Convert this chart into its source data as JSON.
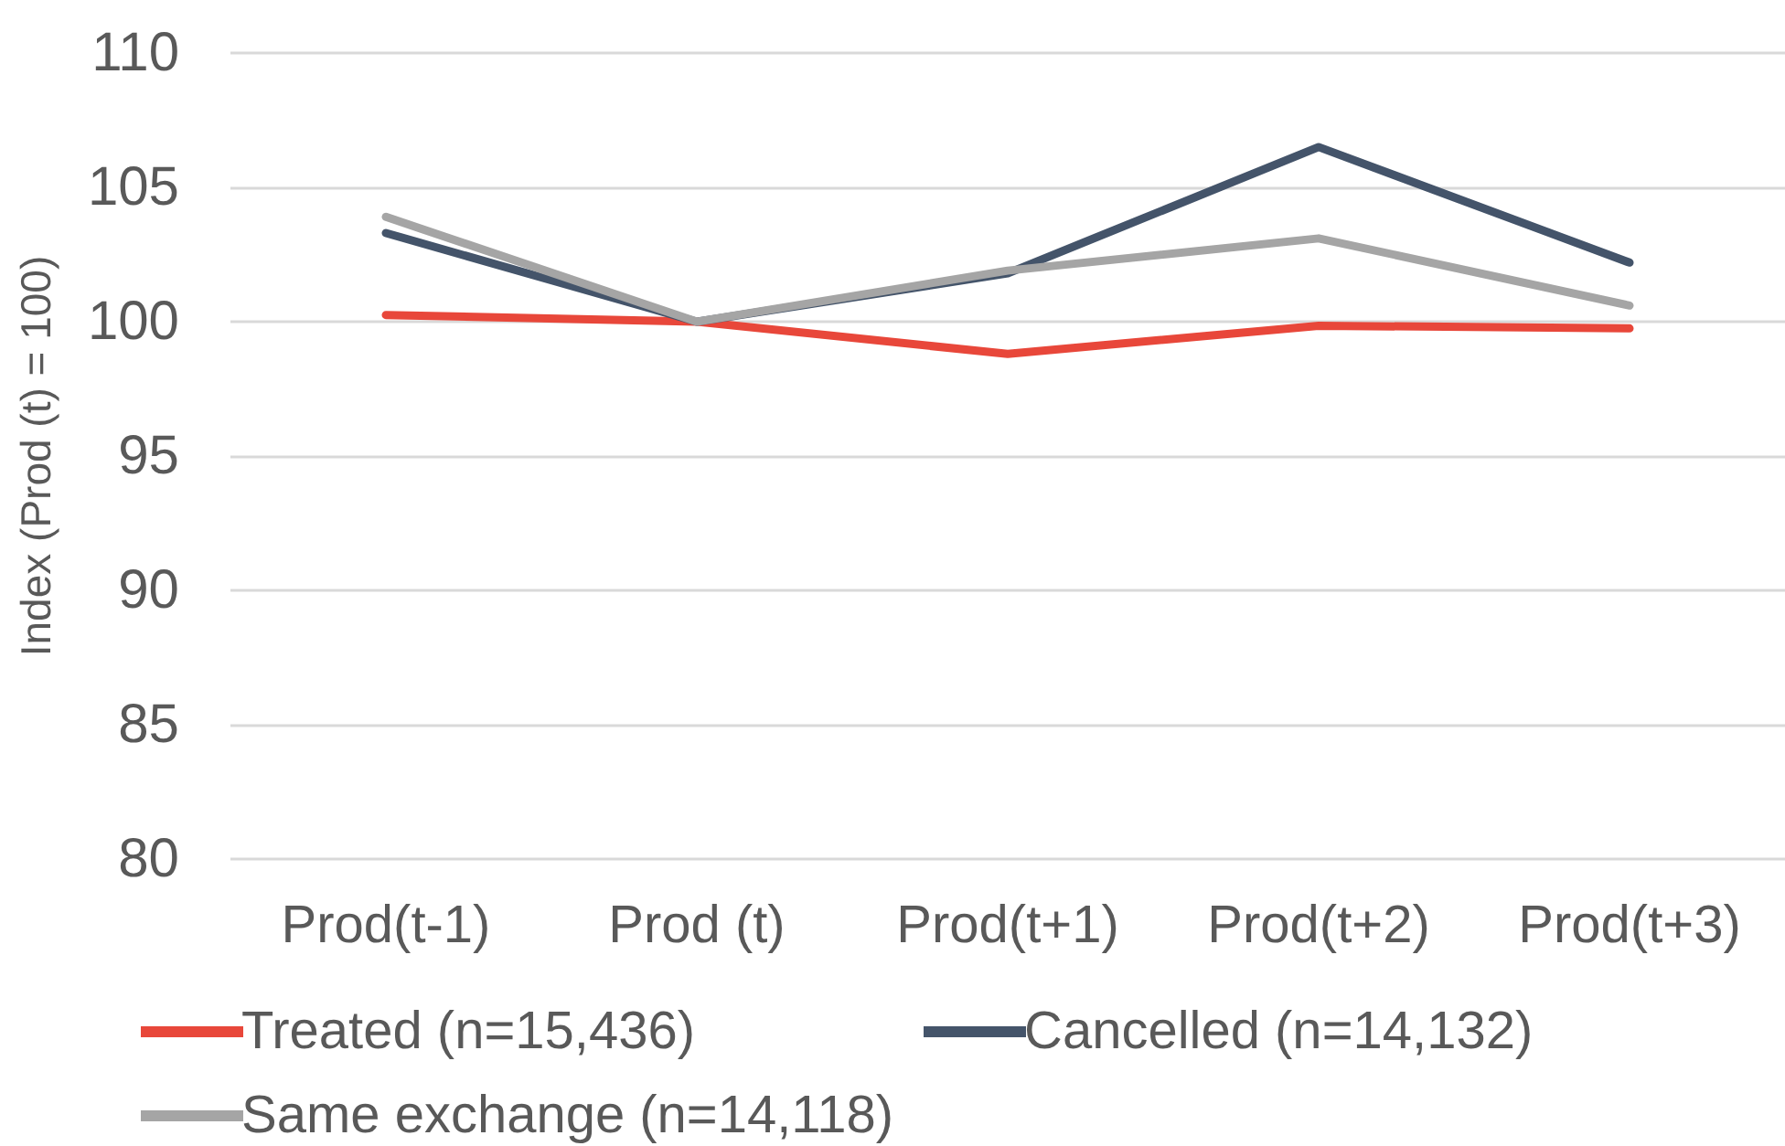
{
  "chart_data": {
    "type": "line",
    "ylabel": "Index (Prod (t) = 100)",
    "categories": [
      "Prod(t-1)",
      "Prod (t)",
      "Prod(t+1)",
      "Prod(t+2)",
      "Prod(t+3)"
    ],
    "series": [
      {
        "name": "Treated (n=15,436)",
        "color": "#e8473a",
        "values": [
          100.25,
          100,
          98.8,
          99.85,
          99.75
        ]
      },
      {
        "name": "Cancelled (n=14,132)",
        "color": "#44546a",
        "values": [
          103.3,
          100,
          101.8,
          106.5,
          102.2
        ]
      },
      {
        "name": "Same exchange (n=14,118)",
        "color": "#a5a5a5",
        "values": [
          103.9,
          100,
          101.9,
          103.1,
          100.6
        ]
      }
    ],
    "ylim": [
      80,
      110
    ],
    "yticks": [
      80,
      85,
      90,
      95,
      100,
      105,
      110
    ],
    "grid": "y",
    "legend": "bottom",
    "marker": "none",
    "line_style": "solid"
  }
}
